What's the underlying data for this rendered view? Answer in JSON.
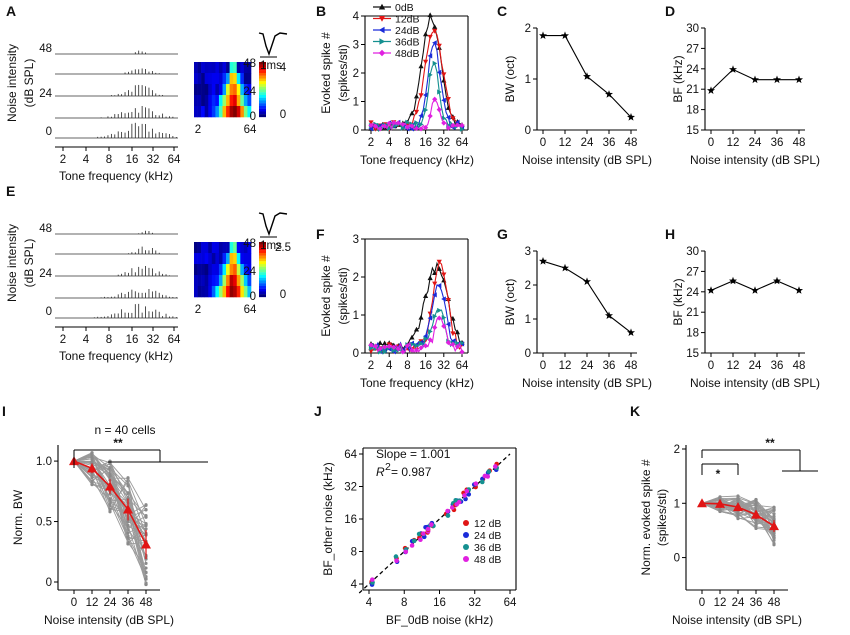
{
  "panel_letters": [
    "A",
    "B",
    "C",
    "D",
    "E",
    "F",
    "G",
    "H",
    "I",
    "J",
    "K"
  ],
  "colors": {
    "c0": "#111111",
    "c12": "#e01515",
    "c24": "#1a2bd9",
    "c36": "#159090",
    "c48": "#e020e0",
    "red": "#e01515",
    "gray": "#9a9a9a"
  },
  "labels": {
    "noise_intensity": "Noise intensity",
    "db_spl_paren": "(dB SPL)",
    "tone_freq_khz": "Tone frequency (kHz)",
    "evoked_spike": "Evoked spike #",
    "spikes_sti": "(spikes/sti)",
    "noise_intensity_db": "Noise intensity (dB SPL)",
    "bw_oct": "BW (oct)",
    "bf_khz": "BF (kHz)",
    "norm_bw": "Norm. BW",
    "norm_evoked": "Norm. evoked spike #",
    "bf_other": "BF_other noise (kHz)",
    "bf_0db": "BF_0dB noise (kHz)",
    "one_ms": "1ms"
  },
  "raster_A": {
    "noise_ticks": [
      "48",
      "24",
      "0"
    ],
    "freq_ticks": [
      "2",
      "4",
      "8",
      "16",
      "32",
      "64"
    ],
    "heatmap_levels": [
      "48",
      "24",
      "0"
    ],
    "heatmap_x": [
      "2",
      "64"
    ],
    "colorbar_ticks": [
      "4",
      "0"
    ]
  },
  "raster_E": {
    "noise_ticks": [
      "48",
      "24",
      "0"
    ],
    "freq_ticks": [
      "2",
      "4",
      "8",
      "16",
      "32",
      "64"
    ],
    "heatmap_levels": [
      "48",
      "24",
      "0"
    ],
    "heatmap_x": [
      "2",
      "64"
    ],
    "colorbar_ticks": [
      "2.5",
      "0"
    ]
  },
  "chart_data": [
    {
      "panel": "B",
      "type": "line",
      "xlabel": "Tone frequency (kHz)",
      "ylabel": "Evoked spike #",
      "x_scale": "log2",
      "x_ticks": [
        "2",
        "4",
        "8",
        "16",
        "32",
        "64"
      ],
      "ylim": [
        0,
        4
      ],
      "y_ticks": [
        "0",
        "1",
        "2",
        "3",
        "4"
      ],
      "legend": [
        "0dB",
        "12dB",
        "24dB",
        "36dB",
        "48dB"
      ],
      "series": [
        {
          "name": "0dB",
          "peak_khz": 20,
          "peak": 3.8,
          "width_oct": 0.9
        },
        {
          "name": "12dB",
          "peak_khz": 22,
          "peak": 3.4,
          "width_oct": 0.85
        },
        {
          "name": "24dB",
          "peak_khz": 22,
          "peak": 2.9,
          "width_oct": 0.6
        },
        {
          "name": "36dB",
          "peak_khz": 22,
          "peak": 2.2,
          "width_oct": 0.5
        },
        {
          "name": "48dB",
          "peak_khz": 23,
          "peak": 1.0,
          "width_oct": 0.35
        }
      ]
    },
    {
      "panel": "C",
      "type": "line",
      "xlabel": "Noise intensity (dB SPL)",
      "ylabel": "BW (oct)",
      "x": [
        0,
        12,
        24,
        36,
        48
      ],
      "x_ticks": [
        "0",
        "12",
        "24",
        "36",
        "48"
      ],
      "ylim": [
        0,
        2
      ],
      "y_ticks": [
        "0",
        "1",
        "2"
      ],
      "values": [
        1.85,
        1.85,
        1.05,
        0.7,
        0.25
      ]
    },
    {
      "panel": "D",
      "type": "line",
      "xlabel": "Noise intensity (dB SPL)",
      "ylabel": "BF (kHz)",
      "x": [
        0,
        12,
        24,
        36,
        48
      ],
      "x_ticks": [
        "0",
        "12",
        "24",
        "36",
        "48"
      ],
      "ylim": [
        15,
        30
      ],
      "y_ticks": [
        "15",
        "18",
        "21",
        "24",
        "27",
        "30"
      ],
      "values": [
        20.8,
        23.9,
        22.4,
        22.4,
        22.4
      ]
    },
    {
      "panel": "F",
      "type": "line",
      "xlabel": "Tone frequency (kHz)",
      "ylabel": "Evoked spike #",
      "x_scale": "log2",
      "x_ticks": [
        "2",
        "4",
        "8",
        "16",
        "32",
        "64"
      ],
      "ylim": [
        0,
        3
      ],
      "y_ticks": [
        "0",
        "1",
        "2",
        "3"
      ],
      "series": [
        {
          "name": "0dB",
          "peak_khz": 24,
          "peak": 2.1,
          "width_oct": 1.1
        },
        {
          "name": "12dB",
          "peak_khz": 28,
          "peak": 2.3,
          "width_oct": 0.7
        },
        {
          "name": "24dB",
          "peak_khz": 26,
          "peak": 1.6,
          "width_oct": 0.7
        },
        {
          "name": "36dB",
          "peak_khz": 26,
          "peak": 1.1,
          "width_oct": 0.6
        },
        {
          "name": "48dB",
          "peak_khz": 28,
          "peak": 0.8,
          "width_oct": 0.5
        }
      ]
    },
    {
      "panel": "G",
      "type": "line",
      "xlabel": "Noise intensity (dB SPL)",
      "ylabel": "BW (oct)",
      "x": [
        0,
        12,
        24,
        36,
        48
      ],
      "x_ticks": [
        "0",
        "12",
        "24",
        "36",
        "48"
      ],
      "ylim": [
        0,
        3
      ],
      "y_ticks": [
        "0",
        "1",
        "2",
        "3"
      ],
      "values": [
        2.7,
        2.5,
        2.1,
        1.1,
        0.6
      ]
    },
    {
      "panel": "H",
      "type": "line",
      "xlabel": "Noise intensity (dB SPL)",
      "ylabel": "BF (kHz)",
      "x": [
        0,
        12,
        24,
        36,
        48
      ],
      "x_ticks": [
        "0",
        "12",
        "24",
        "36",
        "48"
      ],
      "ylim": [
        15,
        30
      ],
      "y_ticks": [
        "15",
        "18",
        "21",
        "24",
        "27",
        "30"
      ],
      "values": [
        24.2,
        25.6,
        24.2,
        25.6,
        24.2
      ]
    },
    {
      "panel": "I",
      "type": "line",
      "title": "n = 40 cells",
      "xlabel": "Noise intensity (dB SPL)",
      "ylabel": "Norm. BW",
      "x": [
        0,
        12,
        24,
        36,
        48
      ],
      "x_ticks": [
        "0",
        "12",
        "24",
        "36",
        "48"
      ],
      "ylim": [
        0,
        1.1
      ],
      "y_ticks": [
        "0",
        "0.5",
        "1.0"
      ],
      "mean": [
        1.0,
        0.94,
        0.79,
        0.6,
        0.31
      ],
      "sem": [
        0,
        0.04,
        0.06,
        0.09,
        0.12
      ],
      "n_cells": 40,
      "significance": "**"
    },
    {
      "panel": "J",
      "type": "scatter",
      "xlabel": "BF_0dB noise (kHz)",
      "ylabel": "BF_other noise (kHz)",
      "x_scale": "log2",
      "y_scale": "log2",
      "xlim": [
        3.2,
        64
      ],
      "ylim": [
        3.2,
        64
      ],
      "x_ticks": [
        "4",
        "8",
        "16",
        "32",
        "64"
      ],
      "y_ticks": [
        "4",
        "8",
        "16",
        "32",
        "64"
      ],
      "annotations": [
        "Slope = 1.001",
        "R",
        "2",
        " = 0.987"
      ],
      "legend": [
        "12 dB",
        "24 dB",
        "36 dB",
        "48 dB"
      ],
      "bf_0db_khz": [
        4.2,
        6.8,
        8.2,
        9.5,
        11,
        11.8,
        12.5,
        13,
        14,
        18.5,
        21,
        22.5,
        24,
        26,
        28,
        32,
        38,
        42,
        48
      ]
    },
    {
      "panel": "K",
      "type": "line",
      "xlabel": "Noise intensity (dB SPL)",
      "ylabel": "Norm. evoked spike #",
      "x": [
        0,
        12,
        24,
        36,
        48
      ],
      "x_ticks": [
        "0",
        "12",
        "24",
        "36",
        "48"
      ],
      "ylim": [
        -0.45,
        2
      ],
      "y_ticks": [
        "0",
        "1",
        "2"
      ],
      "mean": [
        1.0,
        0.99,
        0.93,
        0.79,
        0.58
      ],
      "sem": [
        0,
        0.04,
        0.06,
        0.08,
        0.11
      ],
      "significance": [
        "*",
        "**"
      ]
    }
  ]
}
